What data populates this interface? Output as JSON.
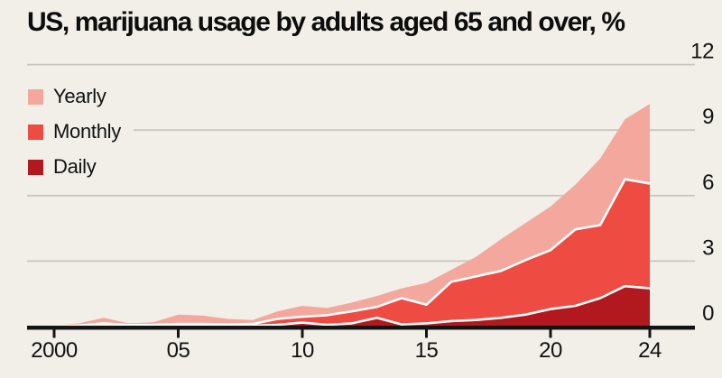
{
  "title": "US, marijuana usage by adults aged 65 and over, %",
  "colors": {
    "background": "#f1efe8",
    "title_text": "#0d0d0d",
    "label_text": "#121212",
    "gridline": "#c9c6bf",
    "axis": "#141414",
    "boundary_line": "#ffffff",
    "yearly_area": "#f4a79c",
    "monthly_area": "#ee4b42",
    "daily_area": "#b2191f"
  },
  "legend": [
    {
      "label": "Yearly",
      "color": "#f4a79c"
    },
    {
      "label": "Monthly",
      "color": "#ee4b42"
    },
    {
      "label": "Daily",
      "color": "#b2191f"
    }
  ],
  "chart_data": {
    "type": "area",
    "title": "US, marijuana usage by adults aged 65 and over, %",
    "stacking": "overlaid-nested (each band drawn from zero; Daily within Monthly within Yearly)",
    "grid": "horizontal",
    "y_axis_side": "right",
    "xlim": [
      2000,
      2024
    ],
    "ylim": [
      0,
      12.5
    ],
    "x": [
      2000,
      2001,
      2002,
      2003,
      2004,
      2005,
      2006,
      2007,
      2008,
      2009,
      2010,
      2011,
      2012,
      2013,
      2014,
      2015,
      2016,
      2017,
      2018,
      2019,
      2020,
      2021,
      2022,
      2023,
      2024
    ],
    "series": [
      {
        "name": "Yearly",
        "color": "#f4a79c",
        "stroke_top": false,
        "values": [
          0.03,
          0.15,
          0.4,
          0.15,
          0.2,
          0.55,
          0.5,
          0.35,
          0.3,
          0.7,
          0.95,
          0.85,
          1.1,
          1.4,
          1.75,
          2.0,
          2.6,
          3.2,
          4.0,
          4.75,
          5.5,
          6.5,
          7.7,
          9.5,
          10.2
        ]
      },
      {
        "name": "Monthly",
        "color": "#ee4b42",
        "stroke_top": true,
        "values": [
          0.0,
          0.05,
          0.15,
          0.07,
          0.08,
          0.12,
          0.12,
          0.1,
          0.12,
          0.35,
          0.45,
          0.52,
          0.7,
          0.9,
          1.3,
          1.0,
          2.05,
          2.3,
          2.55,
          3.05,
          3.5,
          4.45,
          4.65,
          6.75,
          6.55
        ]
      },
      {
        "name": "Daily",
        "color": "#b2191f",
        "stroke_top": true,
        "values": [
          0.0,
          0.0,
          0.03,
          0.02,
          0.02,
          0.03,
          0.03,
          0.03,
          0.04,
          0.08,
          0.18,
          0.08,
          0.15,
          0.4,
          0.1,
          0.15,
          0.25,
          0.3,
          0.4,
          0.55,
          0.8,
          0.95,
          1.3,
          1.85,
          1.75
        ]
      }
    ],
    "x_ticks": {
      "years": [
        2000,
        2005,
        2010,
        2015,
        2020,
        2024
      ],
      "labels": [
        "2000",
        "05",
        "10",
        "15",
        "20",
        "24"
      ]
    },
    "y_ticks": {
      "values": [
        0,
        3,
        6,
        9,
        12
      ],
      "labels": [
        "0",
        "3",
        "6",
        "9",
        "12"
      ]
    },
    "boundary_line_color": "#ffffff"
  }
}
